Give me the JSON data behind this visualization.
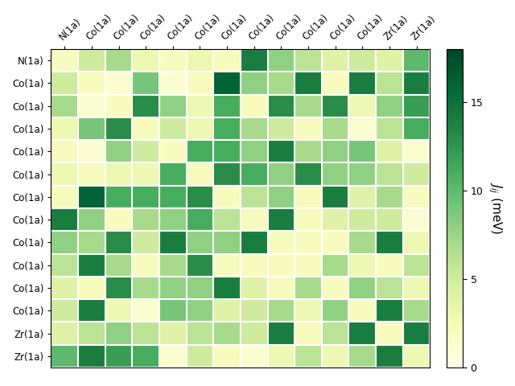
{
  "labels": [
    "N(1a)",
    "Co(1a)",
    "Co(1a)",
    "Co(1a)",
    "Co(1a)",
    "Co(1a)",
    "Co(1a)",
    "Co(1a)",
    "Co(1a)",
    "Co(1a)",
    "Co(1a)",
    "Co(1a)",
    "Zr(1a)",
    "Zr(1a)"
  ],
  "vmin": 0,
  "vmax": 18,
  "colorbar_ticks": [
    0,
    5,
    10,
    15
  ],
  "colorbar_label": "$J_{ij}$ (meV)",
  "matrix": [
    [
      2,
      5,
      7,
      3,
      2,
      3,
      2,
      14,
      8,
      6,
      4,
      5,
      4,
      10
    ],
    [
      5,
      2,
      1,
      9,
      1,
      2,
      16,
      8,
      7,
      14,
      2,
      14,
      6,
      14
    ],
    [
      7,
      1,
      2,
      13,
      8,
      3,
      11,
      2,
      13,
      7,
      13,
      3,
      8,
      12
    ],
    [
      3,
      9,
      13,
      2,
      5,
      3,
      11,
      7,
      5,
      2,
      7,
      1,
      6,
      11
    ],
    [
      2,
      1,
      8,
      5,
      2,
      11,
      11,
      8,
      14,
      7,
      8,
      9,
      4,
      1
    ],
    [
      3,
      2,
      3,
      3,
      11,
      2,
      13,
      11,
      8,
      13,
      8,
      8,
      6,
      5
    ],
    [
      2,
      16,
      11,
      11,
      11,
      13,
      2,
      6,
      8,
      2,
      14,
      4,
      7,
      2
    ],
    [
      14,
      8,
      2,
      7,
      8,
      11,
      6,
      2,
      14,
      2,
      4,
      5,
      5,
      1
    ],
    [
      8,
      7,
      13,
      5,
      14,
      8,
      8,
      14,
      2,
      2,
      2,
      7,
      14,
      3
    ],
    [
      6,
      14,
      7,
      2,
      7,
      13,
      2,
      2,
      2,
      2,
      7,
      3,
      2,
      6
    ],
    [
      4,
      2,
      13,
      7,
      8,
      8,
      14,
      4,
      2,
      7,
      2,
      8,
      6,
      3
    ],
    [
      5,
      14,
      3,
      1,
      9,
      8,
      4,
      5,
      7,
      3,
      8,
      2,
      14,
      7
    ],
    [
      4,
      6,
      8,
      6,
      4,
      6,
      7,
      5,
      14,
      2,
      6,
      14,
      2,
      14
    ],
    [
      10,
      14,
      12,
      11,
      1,
      5,
      2,
      1,
      3,
      6,
      3,
      7,
      14,
      3
    ]
  ],
  "figsize": [
    6.4,
    4.8
  ],
  "dpi": 100
}
